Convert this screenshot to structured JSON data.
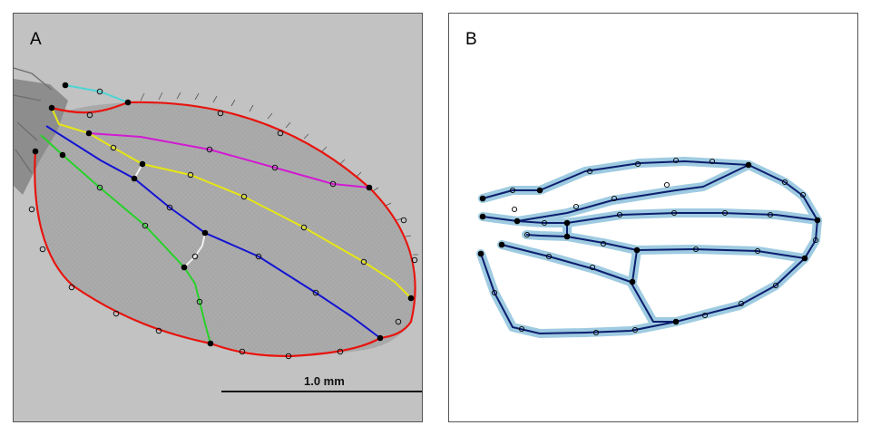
{
  "panels": {
    "a": {
      "label": "A",
      "scale_bar_label": "1.0 mm"
    },
    "b": {
      "label": "B"
    }
  },
  "colors": {
    "background_photo": "#c2c2c2",
    "wing_membrane": "#ababab",
    "outline_red": "#e8140e",
    "vein_cyan": "#4fd4d4",
    "vein_yellow": "#e6e614",
    "vein_magenta": "#d21ad2",
    "vein_blue": "#1414d2",
    "vein_green": "#28d028",
    "crossvein_white": "#f0f0f0",
    "model_line": "#0c1e6e",
    "model_halo": "#8ec3dc"
  }
}
